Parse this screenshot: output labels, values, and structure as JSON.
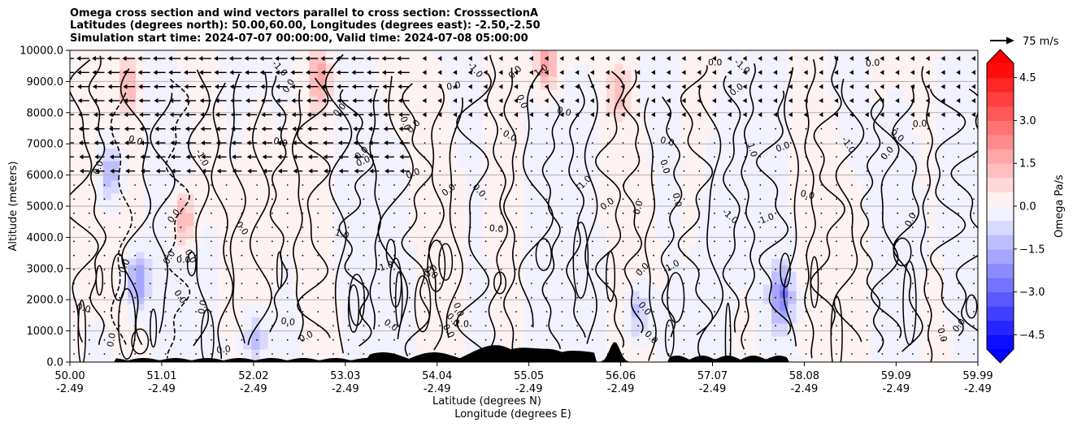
{
  "chart_data": {
    "type": "heatmap",
    "title": [
      "Omega cross section and wind vectors parallel to cross section: CrosssectionA",
      "Latitudes (degrees north): 50.00,60.00, Longitudes (degrees east): -2.50,-2.50",
      "Simulation start time: 2024-07-07 00:00:00, Valid time: 2024-07-08 05:00:00"
    ],
    "ylabel": "Altitude (meters)",
    "xlabel": "Latitude (degrees N)",
    "xlabel2": "Longitude (degrees E)",
    "ylim": [
      0,
      10000
    ],
    "xlim": [
      50.0,
      59.99
    ],
    "yticks": [
      0,
      1000,
      2000,
      3000,
      4000,
      5000,
      6000,
      7000,
      8000,
      9000,
      10000
    ],
    "ytick_labels": [
      "0.0",
      "1000.0",
      "2000.0",
      "3000.0",
      "4000.0",
      "5000.0",
      "6000.0",
      "7000.0",
      "8000.0",
      "9000.0",
      "10000.0"
    ],
    "xticks": [
      50.0,
      51.01,
      52.02,
      53.03,
      54.04,
      55.05,
      56.06,
      57.07,
      58.08,
      59.09,
      59.99
    ],
    "xtick_lat_labels": [
      "50.00",
      "51.01",
      "52.02",
      "53.03",
      "54.04",
      "55.05",
      "56.06",
      "57.07",
      "58.08",
      "59.09",
      "59.99"
    ],
    "xtick_lon_labels": [
      "-2.49",
      "-2.49",
      "-2.49",
      "-2.49",
      "-2.49",
      "-2.49",
      "-2.49",
      "-2.49",
      "-2.49",
      "-2.49",
      "-2.49"
    ],
    "grid": "horizontal",
    "colorbar": {
      "label": "Omega Pa/s",
      "range": [
        -5.0,
        5.0
      ],
      "ticks": [
        -4.5,
        -3.0,
        -1.5,
        0.0,
        1.5,
        3.0,
        4.5
      ],
      "tick_labels": [
        "−4.5",
        "−3.0",
        "−1.5",
        "0.0",
        "1.5",
        "3.0",
        "4.5"
      ],
      "cmap": "bwr",
      "extend": "both"
    },
    "quiver_key": {
      "label": "75 m/s",
      "value": 75
    },
    "contour_levels": [
      -1.0,
      0.0,
      1.0
    ],
    "contour_label_samples": [
      "0.0",
      "1.0",
      "-1.0"
    ],
    "colors": {
      "positive": "#ff0000",
      "negative": "#0000ff",
      "terrain": "#000000"
    }
  }
}
